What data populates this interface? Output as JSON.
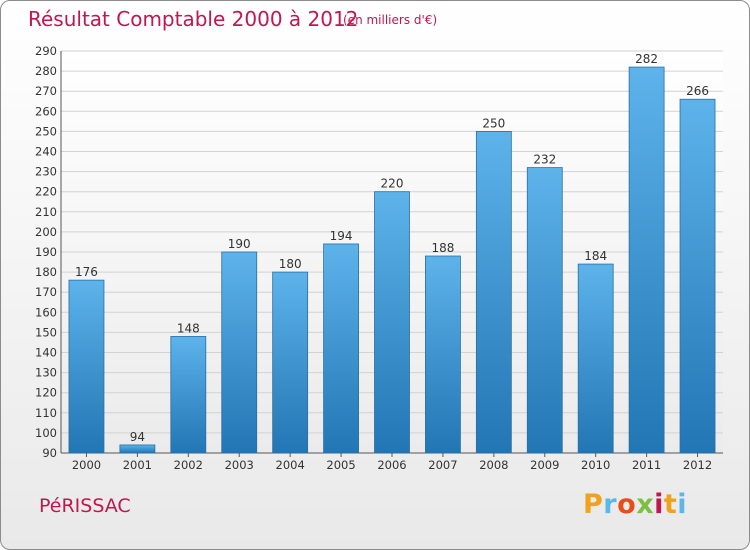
{
  "chart_data": {
    "type": "bar",
    "title": "Résultat Comptable 2000 à 2012",
    "subtitle": "(en milliers d'€)",
    "categories": [
      "2000",
      "2001",
      "2002",
      "2003",
      "2004",
      "2005",
      "2006",
      "2007",
      "2008",
      "2009",
      "2010",
      "2011",
      "2012"
    ],
    "values": [
      176,
      94,
      148,
      190,
      180,
      194,
      220,
      188,
      250,
      232,
      184,
      282,
      266
    ],
    "ylim": [
      90,
      290
    ],
    "ytick_step": 10,
    "grid": true,
    "xlabel": "",
    "ylabel": ""
  },
  "footer": {
    "commune": "PéRISSAC",
    "logo_text": "Proxiti"
  },
  "colors": {
    "title": "#c0174e",
    "bar_top": "#5db3ea",
    "bar_bottom": "#2276b4",
    "logo": [
      "#f0a21a",
      "#5ab8e8",
      "#e84d1a",
      "#7ac143",
      "#c0174e",
      "#f0a21a",
      "#5ab8e8"
    ]
  }
}
